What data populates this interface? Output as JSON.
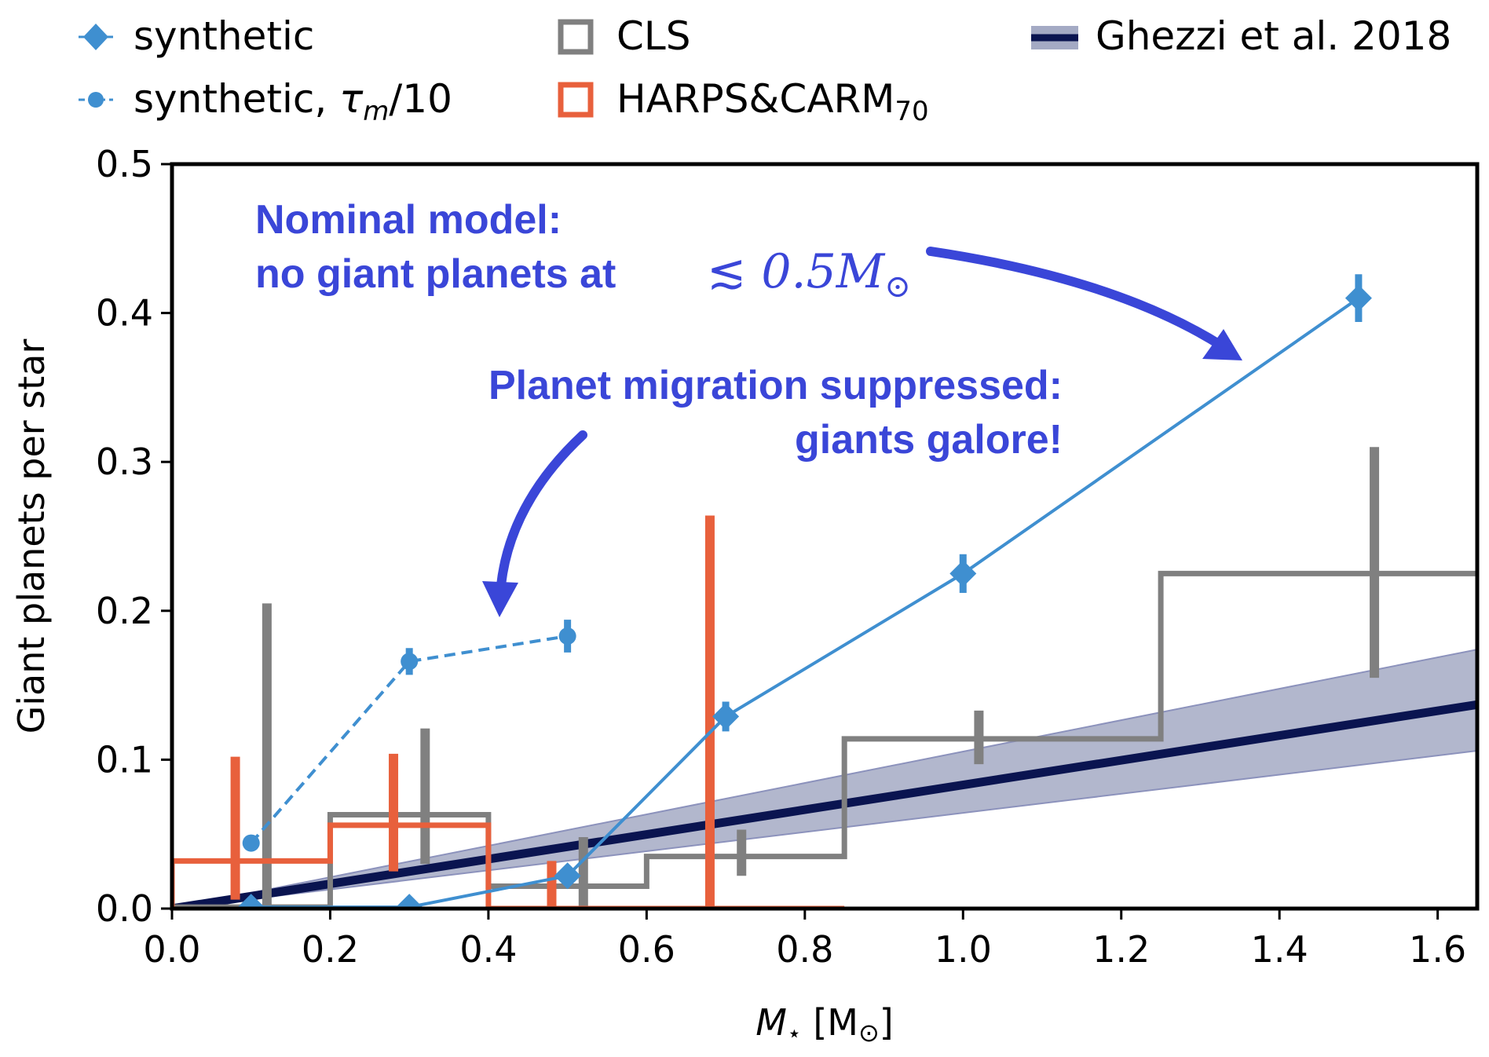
{
  "chart_data": {
    "type": "line",
    "xlabel_symbol": "M",
    "xlabel_sub": "⋆",
    "xlabel_unit": "[M",
    "xlabel_unit_sub": "⊙",
    "xlabel_unit_close": "]",
    "ylabel": "Giant planets per star",
    "xlim": [
      0.0,
      1.65
    ],
    "ylim": [
      0.0,
      0.5
    ],
    "x_ticks": [
      0.0,
      0.2,
      0.4,
      0.6,
      0.8,
      1.0,
      1.2,
      1.4,
      1.6
    ],
    "x_tick_labels": [
      "0.0",
      "0.2",
      "0.4",
      "0.6",
      "0.8",
      "1.0",
      "1.2",
      "1.4",
      "1.6"
    ],
    "y_ticks": [
      0.0,
      0.1,
      0.2,
      0.3,
      0.4,
      0.5
    ],
    "y_tick_labels": [
      "0.0",
      "0.1",
      "0.2",
      "0.3",
      "0.4",
      "0.5"
    ],
    "grid": false,
    "legend": {
      "placement": "above plot",
      "entries": [
        {
          "id": "synthetic",
          "label": "synthetic"
        },
        {
          "id": "tau",
          "label_prefix": "synthetic, ",
          "label_tau": "τ",
          "label_sub": "m",
          "label_suffix": "/10"
        },
        {
          "id": "cls",
          "label": "CLS"
        },
        {
          "id": "harps",
          "label": "HARPS&CARM",
          "label_sub": "70"
        },
        {
          "id": "ghezzi",
          "label": "Ghezzi et al. 2018"
        }
      ]
    },
    "colors": {
      "synthetic": "#3f8fd0",
      "cls": "#808080",
      "harps": "#e8603c",
      "ghezzi_line": "#0a1450",
      "ghezzi_band": "#a4aac4",
      "annotation": "#3a46d8"
    },
    "series": [
      {
        "name": "synthetic",
        "type": "line-errorbar",
        "marker": "diamond",
        "style": "solid",
        "x": [
          0.1,
          0.3,
          0.5,
          0.7,
          1.0,
          1.5
        ],
        "y": [
          0.001,
          0.001,
          0.022,
          0.129,
          0.225,
          0.41
        ],
        "err": [
          0.0,
          0.0,
          0.006,
          0.01,
          0.013,
          0.016
        ]
      },
      {
        "name": "synthetic, τm/10",
        "type": "line-errorbar",
        "marker": "circle",
        "style": "dashed",
        "x": [
          0.1,
          0.3,
          0.5
        ],
        "y": [
          0.044,
          0.166,
          0.183
        ],
        "err": [
          0.0,
          0.009,
          0.011
        ]
      },
      {
        "name": "CLS",
        "type": "step-histogram",
        "bin_edges": [
          0.0,
          0.2,
          0.4,
          0.6,
          0.85,
          1.25,
          1.65
        ],
        "values": [
          0.001,
          0.063,
          0.015,
          0.035,
          0.114,
          0.225
        ],
        "error_x": [
          0.12,
          0.32,
          0.52,
          0.72,
          1.02,
          1.52
        ],
        "error_low": [
          0.0,
          0.03,
          0.0,
          0.022,
          0.097,
          0.155
        ],
        "error_high": [
          0.205,
          0.121,
          0.048,
          0.053,
          0.133,
          0.31
        ]
      },
      {
        "name": "HARPS&CARM70",
        "type": "step-histogram",
        "bin_edges": [
          0.0,
          0.2,
          0.4,
          0.6,
          0.85
        ],
        "values": [
          0.032,
          0.056,
          0.0,
          0.0
        ],
        "error_x": [
          0.08,
          0.28,
          0.48,
          0.68
        ],
        "error_low": [
          0.006,
          0.025,
          0.0,
          0.0
        ],
        "error_high": [
          0.102,
          0.104,
          0.032,
          0.264
        ]
      },
      {
        "name": "Ghezzi et al. 2018",
        "type": "line-band",
        "x": [
          0.0,
          1.65
        ],
        "y": [
          0.0,
          0.137
        ],
        "band_low": [
          0.0,
          0.106
        ],
        "band_high": [
          0.0,
          0.174
        ]
      }
    ],
    "annotations": [
      {
        "id": "nominal",
        "lines": [
          "Nominal model:",
          "no giant planets at"
        ],
        "math_sym": "≲",
        "math_value": "0.5M",
        "math_sub": "⊙"
      },
      {
        "id": "migration",
        "lines": [
          "Planet migration suppressed:",
          "giants galore!"
        ]
      }
    ]
  }
}
